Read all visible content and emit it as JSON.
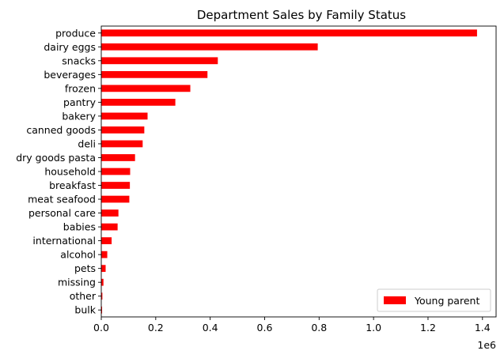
{
  "chart_data": {
    "type": "bar",
    "orientation": "horizontal",
    "title": "Department Sales by Family Status",
    "xlabel": "",
    "ylabel": "",
    "x_scale_label": "1e6",
    "xlim": [
      0,
      1450000
    ],
    "x_ticks": [
      0,
      200000,
      400000,
      600000,
      800000,
      1000000,
      1200000,
      1400000
    ],
    "x_tick_labels": [
      "0.0",
      "0.2",
      "0.4",
      "0.6",
      "0.8",
      "1.0",
      "1.2",
      "1.4"
    ],
    "grid": false,
    "legend_position": "lower-right",
    "categories": [
      "produce",
      "dairy eggs",
      "snacks",
      "beverages",
      "frozen",
      "pantry",
      "bakery",
      "canned goods",
      "deli",
      "dry goods pasta",
      "household",
      "breakfast",
      "meat seafood",
      "personal care",
      "babies",
      "international",
      "alcohol",
      "pets",
      "missing",
      "other",
      "bulk"
    ],
    "series": [
      {
        "name": "Young parent",
        "color": "#ff0000",
        "values": [
          1380000,
          795000,
          428000,
          390000,
          327000,
          272000,
          170000,
          158000,
          152000,
          124000,
          106000,
          105000,
          103000,
          63000,
          60000,
          38000,
          22000,
          16000,
          8000,
          4000,
          3000
        ]
      }
    ]
  }
}
